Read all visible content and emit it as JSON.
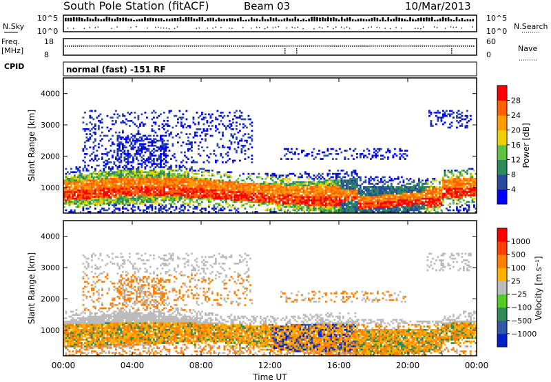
{
  "header": {
    "title": "South Pole Station (fitACF)",
    "beam": "Beam 03",
    "date": "10/Mar/2013"
  },
  "top_panels": {
    "nsky": {
      "label": "N.Sky",
      "ticks": [
        "10^5",
        "10^0"
      ]
    },
    "nsearch": {
      "label": "N.Search",
      "ticks": [
        "10^5",
        "10^0"
      ]
    },
    "freq": {
      "label_line1": "Freq.",
      "label_line2": "[MHz]",
      "ticks": [
        "18",
        "8"
      ]
    },
    "nave": {
      "label": "Nave",
      "ticks": [
        "60",
        "0"
      ]
    },
    "cpid": {
      "label": "CPID",
      "value": "normal (fast) -151 RF"
    }
  },
  "chart_data": [
    {
      "type": "heatmap",
      "name": "power",
      "ylabel": "Slant Range [km]",
      "xlabel": "",
      "x_ticks": [
        "00:00",
        "04:00",
        "08:00",
        "12:00",
        "16:00",
        "20:00",
        "00:00"
      ],
      "y_ticks": [
        "1000",
        "2000",
        "3000",
        "4000"
      ],
      "ylim": [
        180,
        4500
      ],
      "colorbar": {
        "label": "Power [dB]",
        "ticks": [
          "4",
          "8",
          "12",
          "16",
          "20",
          "24",
          "28"
        ],
        "colors": [
          "#0000ff",
          "#2a4aa0",
          "#2a8a5a",
          "#60c040",
          "#f0d000",
          "#ff9a00",
          "#ff6000",
          "#ff0000"
        ]
      }
    },
    {
      "type": "heatmap",
      "name": "velocity",
      "ylabel": "Slant Range [km]",
      "xlabel": "Time UT",
      "x_ticks": [
        "00:00",
        "04:00",
        "08:00",
        "12:00",
        "16:00",
        "20:00",
        "00:00"
      ],
      "y_ticks": [
        "1000",
        "2000",
        "3000",
        "4000"
      ],
      "ylim": [
        180,
        4500
      ],
      "colorbar": {
        "label": "Velocity [m s⁻¹]",
        "ticks": [
          "1000",
          "500",
          "100",
          "25",
          "−25",
          "−100",
          "−500",
          "−1000"
        ],
        "colors": [
          "#0022c8",
          "#2f59a8",
          "#2e8b57",
          "#55cc22",
          "#bbbbbb",
          "#ffb000",
          "#ff8000",
          "#ff4000",
          "#ff0000"
        ]
      }
    }
  ]
}
